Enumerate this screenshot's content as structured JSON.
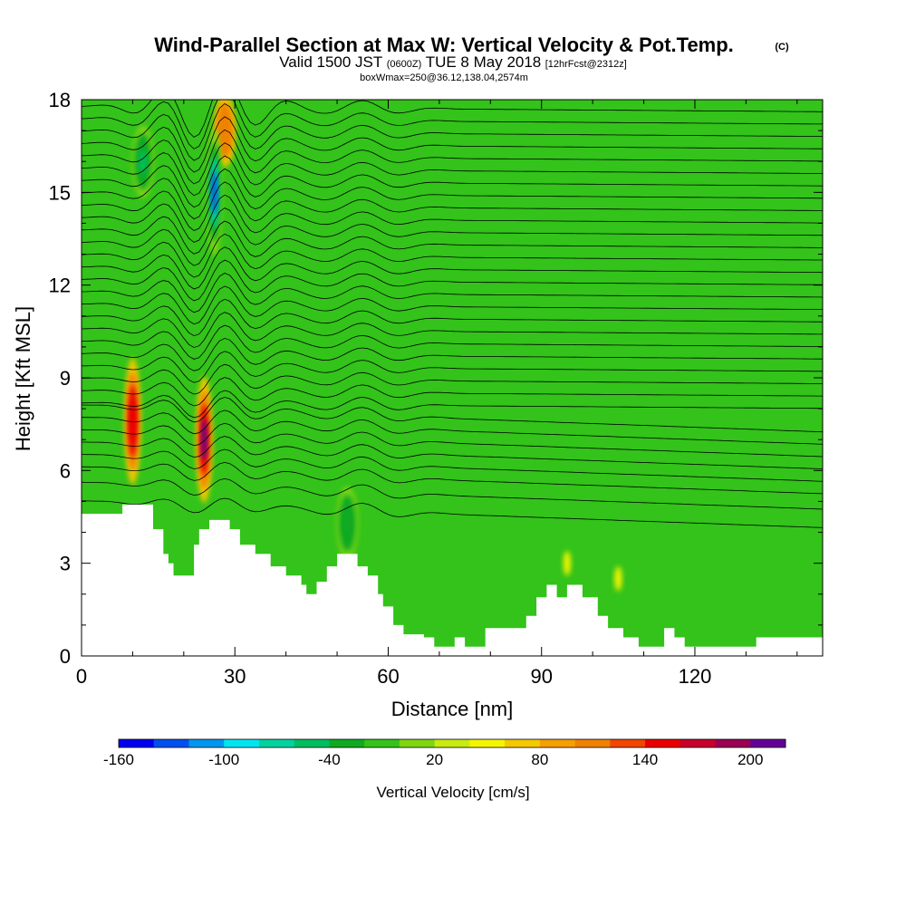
{
  "title": {
    "main": "Wind-Parallel Section at Max W: Vertical Velocity & Pot.Temp.",
    "mark": "(C)",
    "valid_prefix": "Valid 1500 JST",
    "valid_utc": "(0600Z)",
    "valid_suffix": "TUE 8 May 2018",
    "forecast": "[12hrFcst@2312z]",
    "box": "boxWmax=250@36.12,138.04,2574m"
  },
  "chart_data": {
    "type": "heatmap",
    "xlabel": "Distance [nm]",
    "ylabel": "Height [Kft MSL]",
    "xlim": [
      0,
      145
    ],
    "ylim": [
      0,
      18
    ],
    "x_ticks": [
      0,
      30,
      60,
      90,
      120
    ],
    "y_ticks": [
      0,
      3,
      6,
      9,
      12,
      15,
      18
    ],
    "background_color": "#33c31a",
    "colorbar": {
      "title": "Vertical Velocity [cm/s]",
      "labels": [
        "-160",
        "-100",
        "-40",
        "20",
        "80",
        "140",
        "200"
      ],
      "label_positions": [
        0,
        3,
        6,
        9,
        12,
        15,
        18
      ],
      "colors": [
        "#0000f0",
        "#0050f0",
        "#0096f0",
        "#00e6f0",
        "#00d2a0",
        "#00be60",
        "#10aa20",
        "#33c31a",
        "#80d512",
        "#c8eb14",
        "#f5f500",
        "#f5c800",
        "#f5a000",
        "#f08200",
        "#f04600",
        "#eb0000",
        "#c8002d",
        "#9b0055",
        "#640096"
      ]
    },
    "terrain": [
      [
        0,
        4.6
      ],
      [
        8,
        4.6
      ],
      [
        8,
        4.9
      ],
      [
        14,
        4.9
      ],
      [
        14,
        4.1
      ],
      [
        16,
        4.1
      ],
      [
        16,
        3.3
      ],
      [
        17,
        3.3
      ],
      [
        17,
        3.0
      ],
      [
        18,
        3.0
      ],
      [
        18,
        2.6
      ],
      [
        22,
        2.6
      ],
      [
        22,
        3.6
      ],
      [
        23,
        3.6
      ],
      [
        23,
        4.1
      ],
      [
        25,
        4.1
      ],
      [
        25,
        4.4
      ],
      [
        29,
        4.4
      ],
      [
        29,
        4.1
      ],
      [
        31,
        4.1
      ],
      [
        31,
        3.6
      ],
      [
        34,
        3.6
      ],
      [
        34,
        3.3
      ],
      [
        37,
        3.3
      ],
      [
        37,
        2.9
      ],
      [
        40,
        2.9
      ],
      [
        40,
        2.6
      ],
      [
        43,
        2.6
      ],
      [
        43,
        2.3
      ],
      [
        44,
        2.3
      ],
      [
        44,
        2.0
      ],
      [
        46,
        2.0
      ],
      [
        46,
        2.4
      ],
      [
        48,
        2.4
      ],
      [
        48,
        2.9
      ],
      [
        50,
        2.9
      ],
      [
        50,
        3.3
      ],
      [
        54,
        3.3
      ],
      [
        54,
        2.9
      ],
      [
        56,
        2.9
      ],
      [
        56,
        2.6
      ],
      [
        58,
        2.6
      ],
      [
        58,
        2.0
      ],
      [
        59,
        2.0
      ],
      [
        59,
        1.6
      ],
      [
        61,
        1.6
      ],
      [
        61,
        1.0
      ],
      [
        63,
        1.0
      ],
      [
        63,
        0.7
      ],
      [
        67,
        0.7
      ],
      [
        67,
        0.6
      ],
      [
        69,
        0.6
      ],
      [
        69,
        0.3
      ],
      [
        73,
        0.3
      ],
      [
        73,
        0.6
      ],
      [
        75,
        0.6
      ],
      [
        75,
        0.3
      ],
      [
        79,
        0.3
      ],
      [
        79,
        0.9
      ],
      [
        87,
        0.9
      ],
      [
        87,
        1.3
      ],
      [
        89,
        1.3
      ],
      [
        89,
        1.9
      ],
      [
        91,
        1.9
      ],
      [
        91,
        2.3
      ],
      [
        93,
        2.3
      ],
      [
        93,
        1.9
      ],
      [
        95,
        1.9
      ],
      [
        95,
        2.3
      ],
      [
        98,
        2.3
      ],
      [
        98,
        1.9
      ],
      [
        101,
        1.9
      ],
      [
        101,
        1.3
      ],
      [
        103,
        1.3
      ],
      [
        103,
        0.9
      ],
      [
        106,
        0.9
      ],
      [
        106,
        0.6
      ],
      [
        109,
        0.6
      ],
      [
        109,
        0.3
      ],
      [
        114,
        0.3
      ],
      [
        114,
        0.9
      ],
      [
        116,
        0.9
      ],
      [
        116,
        0.6
      ],
      [
        118,
        0.6
      ],
      [
        118,
        0.3
      ],
      [
        132,
        0.3
      ],
      [
        132,
        0.6
      ],
      [
        145,
        0.6
      ],
      [
        145,
        0.0
      ],
      [
        0,
        0.0
      ]
    ],
    "vertical_velocity_features": [
      {
        "x": 24,
        "y": 7.0,
        "value": 200
      },
      {
        "x": 10,
        "y": 7.6,
        "value": 120
      },
      {
        "x": 28,
        "y": 17.0,
        "value": 90
      },
      {
        "x": 26,
        "y": 15.0,
        "value": -160
      },
      {
        "x": 12,
        "y": 16.0,
        "value": -80
      },
      {
        "x": 52,
        "y": 4.3,
        "value": -60
      },
      {
        "x": 95,
        "y": 3.0,
        "value": 30
      },
      {
        "x": 105,
        "y": 2.5,
        "value": 30
      }
    ],
    "theta_contour_heights": [
      4.6,
      5.2,
      5.7,
      6.1,
      6.5,
      6.9,
      7.3,
      7.7,
      8.1,
      8.5,
      8.9,
      9.3,
      9.7,
      10.1,
      10.5,
      10.9,
      11.3,
      11.7,
      12.1,
      12.5,
      12.9,
      13.3,
      13.7,
      14.1,
      14.5,
      14.9,
      15.3,
      15.7,
      16.1,
      16.5,
      16.9,
      17.3,
      17.7
    ]
  }
}
